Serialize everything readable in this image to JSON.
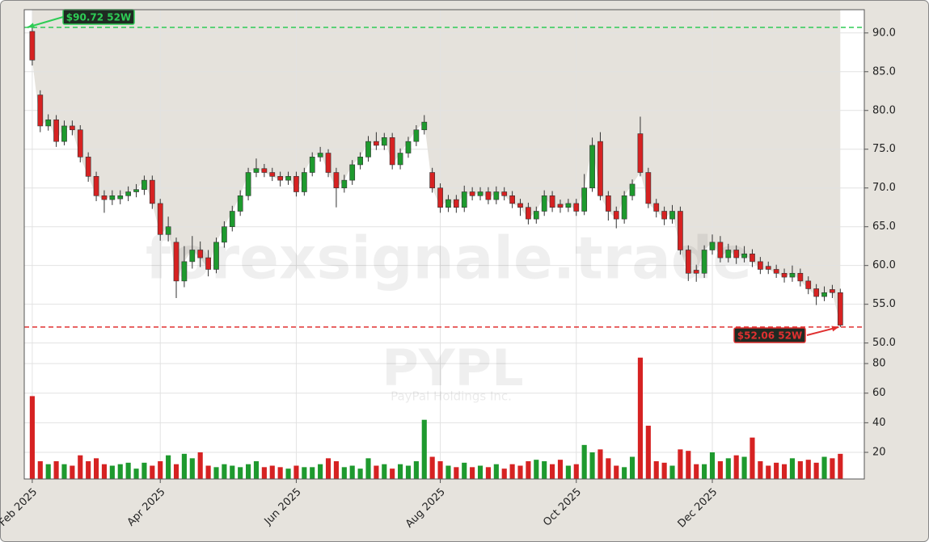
{
  "chart_data": {
    "type": "candlestick",
    "symbol": "PYPL",
    "company": "PayPal Holdings Inc.",
    "watermark": "forexsignale.trade",
    "up_color": "#1e9a2e",
    "down_color": "#d62222",
    "xlim": [
      -1,
      104
    ],
    "xticks": [
      {
        "value": 0,
        "label": "Feb 2025"
      },
      {
        "value": 16,
        "label": "Apr 2025"
      },
      {
        "value": 33,
        "label": "Jun 2025"
      },
      {
        "value": 51,
        "label": "Aug 2025"
      },
      {
        "value": 68,
        "label": "Oct 2025"
      },
      {
        "value": 85,
        "label": "Dec 2025"
      }
    ],
    "ylim": [
      48.4,
      93
    ],
    "yticks": [
      {
        "value": 50,
        "label": "50.0"
      },
      {
        "value": 55,
        "label": "55.0"
      },
      {
        "value": 60,
        "label": "60.0"
      },
      {
        "value": 65,
        "label": "65.0"
      },
      {
        "value": 70,
        "label": "70.0"
      },
      {
        "value": 75,
        "label": "75.0"
      },
      {
        "value": 80,
        "label": "80.0"
      },
      {
        "value": 85,
        "label": "85.0"
      },
      {
        "value": 90,
        "label": "90.0"
      }
    ],
    "volume_ylim": [
      2,
      85.5
    ],
    "volume_yticks": [
      20,
      40,
      60,
      80
    ],
    "grid": true,
    "annotations": [
      {
        "text": "$90.72 52W",
        "value": 90.72,
        "color": "#2ecc55"
      },
      {
        "text": "$52.06 52W",
        "value": 52.06,
        "color": "#e03030"
      }
    ],
    "open": [
      90.2,
      82,
      78,
      78.8,
      76,
      78,
      77.5,
      74,
      71.5,
      69,
      68.5,
      68.6,
      69,
      69.5,
      69.8,
      71,
      68,
      64,
      63,
      58,
      60.5,
      62,
      61,
      59.5,
      63,
      65,
      67,
      69,
      72,
      72.5,
      72,
      71.5,
      71,
      71.5,
      69.5,
      72,
      74,
      74.5,
      72,
      70,
      71,
      73,
      74,
      76,
      75.5,
      76.5,
      73,
      74.5,
      76,
      77.5,
      72,
      70,
      67.5,
      68.5,
      67.5,
      69.5,
      69,
      69.5,
      68.5,
      69.5,
      69,
      68,
      67.5,
      66,
      67,
      69,
      67.9,
      67.5,
      68,
      67,
      70,
      76,
      69,
      67,
      66,
      69,
      77,
      72,
      68,
      67,
      66,
      67,
      62,
      59.4,
      59,
      62,
      63,
      61,
      62,
      61,
      61.5,
      60.5,
      59.9,
      59.5,
      59,
      58.5,
      59,
      58,
      57,
      56,
      56.9,
      56.5
    ],
    "high": [
      90.72,
      82.6,
      79.5,
      79.4,
      78.7,
      78.7,
      78.1,
      74.6,
      72.1,
      69.7,
      69.7,
      69.7,
      70.2,
      70.5,
      71.6,
      71.6,
      68.6,
      66.3,
      63.6,
      62.5,
      63.8,
      63.1,
      62,
      63.6,
      65.7,
      67.7,
      69.7,
      72.6,
      73.8,
      73.1,
      72.6,
      72.1,
      72.1,
      72.1,
      72.6,
      74.6,
      75.3,
      75,
      72.6,
      71.7,
      73.6,
      74.6,
      76.7,
      77.2,
      77.1,
      77.1,
      75.1,
      76.6,
      78.1,
      79.4,
      72.6,
      70.6,
      69.1,
      69.1,
      70.3,
      70.1,
      70.1,
      70.1,
      70.2,
      70.1,
      69.6,
      68.6,
      68.1,
      67.6,
      69.7,
      69.6,
      68.5,
      68.6,
      68.6,
      71.8,
      76.5,
      77.2,
      69.6,
      67.6,
      69.6,
      71.1,
      79.2,
      72.6,
      68.6,
      67.6,
      67.8,
      67.6,
      62.6,
      60.1,
      62.6,
      64,
      63.8,
      62.8,
      62.6,
      62.5,
      62.1,
      61.1,
      60.5,
      60.1,
      59.6,
      60,
      59.6,
      58.6,
      57.6,
      57.3,
      57.5,
      57
    ],
    "low": [
      85.8,
      77.2,
      77.4,
      75.3,
      75.5,
      76.8,
      73.3,
      70.8,
      68.3,
      66.8,
      67.8,
      67.9,
      68.3,
      68.8,
      69.1,
      67.3,
      63.2,
      63.1,
      55.8,
      57.2,
      59.6,
      59.8,
      58.6,
      59,
      62.3,
      64.4,
      66.4,
      68.4,
      71.4,
      71.4,
      70.9,
      70.2,
      70.4,
      68.9,
      69,
      71.5,
      73.4,
      71.4,
      67.5,
      69.4,
      70.4,
      72.4,
      73.4,
      74.9,
      74.9,
      72.4,
      72.4,
      73.9,
      75.4,
      76.9,
      69.4,
      66.8,
      66.9,
      66.8,
      66.9,
      68.4,
      68.4,
      67.9,
      67.9,
      68.4,
      67.4,
      66.4,
      65.3,
      65.4,
      66.4,
      66.9,
      66.8,
      66.9,
      66.4,
      66.5,
      69.5,
      68.4,
      65.8,
      64.8,
      65.4,
      68.4,
      71.5,
      67.4,
      66.2,
      65.2,
      65.4,
      61.4,
      58,
      57.9,
      58.4,
      61.4,
      60.4,
      60.4,
      60.2,
      60.4,
      59.8,
      58.9,
      58.9,
      58.4,
      57.8,
      57.9,
      57.3,
      56.3,
      54.9,
      55.4,
      55.8,
      52.06
    ],
    "close": [
      86.5,
      78,
      78.8,
      76,
      78,
      77.5,
      74,
      71.5,
      69,
      68.5,
      69,
      69,
      69.5,
      69.8,
      71,
      68,
      64,
      65,
      58,
      60.5,
      62,
      61,
      59.5,
      63,
      65,
      67,
      69,
      72,
      72.5,
      72,
      71.5,
      71,
      71.5,
      69.5,
      72,
      74,
      74.5,
      72,
      70,
      71,
      73,
      74,
      76,
      75.5,
      76.5,
      73,
      74.5,
      76,
      77.5,
      78.5,
      70,
      67.5,
      68.5,
      67.5,
      69.5,
      69,
      69.5,
      68.5,
      69.5,
      69,
      68,
      67.5,
      66,
      67,
      69,
      67.5,
      67.5,
      68,
      67,
      70,
      75.5,
      69,
      67,
      66,
      69,
      70.5,
      72,
      68,
      67,
      66,
      67,
      62,
      59,
      59,
      62,
      63,
      61,
      62,
      61,
      61.5,
      60.5,
      59.5,
      59.5,
      59,
      58.5,
      59,
      58,
      57,
      56,
      56.5,
      56.5,
      52.3
    ],
    "volume": [
      58,
      14,
      12,
      14,
      12,
      11,
      18,
      14,
      16,
      12,
      11,
      12,
      13,
      9,
      13,
      11,
      14,
      18,
      12,
      19,
      16,
      20,
      11,
      10,
      12,
      11,
      10,
      12,
      14,
      10,
      11,
      10,
      9,
      11,
      10,
      10,
      12,
      16,
      14,
      10,
      11,
      9,
      16,
      11,
      12,
      9,
      12,
      11,
      14,
      42,
      17,
      14,
      11,
      10,
      13,
      10,
      11,
      10,
      12,
      9,
      12,
      11,
      14,
      15,
      14,
      12,
      15,
      11,
      12,
      25,
      20,
      22,
      16,
      11,
      10,
      17,
      84,
      38,
      14,
      13,
      11,
      22,
      21,
      12,
      12,
      20,
      14,
      16,
      18,
      17,
      30,
      14,
      11,
      13,
      12,
      16,
      14,
      15,
      13,
      17,
      16,
      19
    ]
  }
}
